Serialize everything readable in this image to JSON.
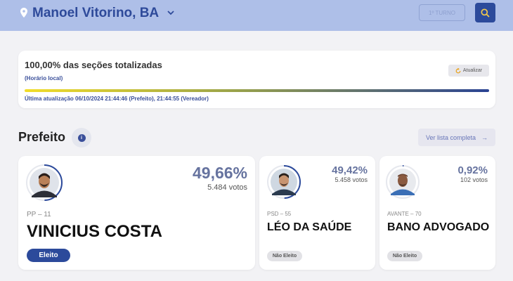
{
  "header": {
    "location": "Manoel Vitorino, BA",
    "turno_button": "1º TURNO"
  },
  "progress": {
    "title": "100,00% das seções totalizadas",
    "subtitle": "(Horário local)",
    "refresh_label": "Atualizar",
    "fraction_complete": 1.0,
    "last_update": "Última atualização 06/10/2024 21:44:46 (Prefeito), 21:44:55 (Vereador)"
  },
  "section": {
    "title": "Prefeito",
    "list_button": "Ver lista completa",
    "arrow": "→"
  },
  "candidates": [
    {
      "party": "PP – 11",
      "name": "VINICIUS COSTA",
      "percent": "49,66%",
      "votes": "5.484 votos",
      "status": "Eleito",
      "ring_fraction": 0.4966
    },
    {
      "party": "PSD – 55",
      "name": "LÉO DA SAÚDE",
      "percent": "49,42%",
      "votes": "5.458 votos",
      "status": "Não Eleito",
      "ring_fraction": 0.4942
    },
    {
      "party": "AVANTE – 70",
      "name": "BANO ADVOGADO",
      "percent": "0,92%",
      "votes": "102 votos",
      "status": "Não Eleito",
      "ring_fraction": 0.0092
    }
  ],
  "colors": {
    "header_bg": "#aebfe8",
    "brand_blue": "#2c4a9b",
    "ring": "#2c4a9b",
    "percent_text": "#66739f",
    "bar_start": "#f2dd2a",
    "bar_end": "#2a4393"
  }
}
